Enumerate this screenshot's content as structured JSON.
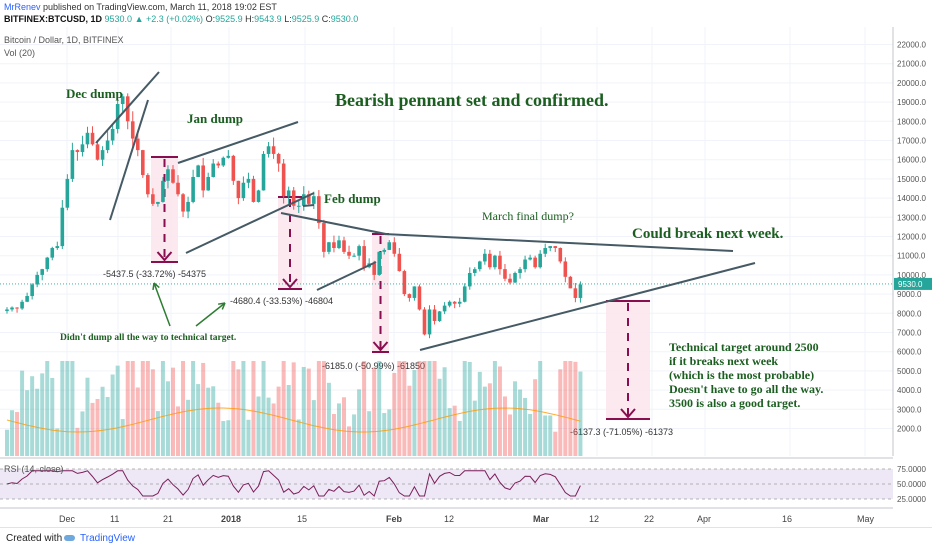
{
  "header": {
    "author": "MrRenev",
    "published": "published on TradingView.com, March 11, 2018 19:02 EST",
    "symbol": "BITFINEX:BTCUSD, 1D",
    "last": "9530.0",
    "change": "+2.3 (+0.02%)",
    "open_label": "O:",
    "open": "9525.9",
    "high_label": "H:",
    "high": "9543.9",
    "low_label": "L:",
    "low": "9525.9",
    "close_label": "C:",
    "close": "9530.0",
    "title": "Bitcoin / Dollar, 1D, BITFINEX",
    "vol_label": "Vol (20)",
    "rsi_label": "RSI (14, close)"
  },
  "colors": {
    "up": "#26a69a",
    "down": "#ef5350",
    "trend": "#455a64",
    "annotation": "#1b5e20",
    "measure": "#880e4f",
    "measure_fill": "#fce4ec",
    "rsi_line": "#7b1f5a",
    "rsi_band": "#ede7f6"
  },
  "footer": {
    "created": "Created with",
    "brand": "TradingView"
  },
  "chart_data": {
    "type": "candlestick",
    "title": "Bitcoin / Dollar, 1D, BITFINEX",
    "y_axis": {
      "min": 2000,
      "max": 22000,
      "ticks": [
        2000,
        3000,
        4000,
        5000,
        6000,
        7000,
        8000,
        9000,
        10000,
        11000,
        12000,
        13000,
        14000,
        15000,
        16000,
        17000,
        18000,
        19000,
        20000,
        21000,
        22000
      ],
      "labels": [
        "2000.0",
        "3000.0",
        "4000.0",
        "5000.0",
        "6000.0",
        "7000.0",
        "8000.0",
        "9000.0",
        "10000.0",
        "11000.0",
        "12000.0",
        "13000.0",
        "14000.0",
        "15000.0",
        "16000.0",
        "17000.0",
        "18000.0",
        "19000.0",
        "20000.0",
        "21000.0",
        "22000.0"
      ]
    },
    "last_price": 9530.0,
    "x_labels": [
      "Dec",
      "11",
      "21",
      "2018",
      "15",
      "Feb",
      "12",
      "Mar",
      "12",
      "22",
      "Apr",
      "16",
      "May"
    ],
    "closes": [
      8200,
      8300,
      8250,
      8600,
      8900,
      9500,
      10000,
      10300,
      10900,
      11400,
      11500,
      13500,
      15000,
      16500,
      16400,
      16800,
      17400,
      16800,
      16000,
      16500,
      17000,
      17600,
      18900,
      19300,
      18000,
      17100,
      16500,
      15200,
      14200,
      13700,
      13800,
      14900,
      15500,
      14800,
      14200,
      13300,
      13800,
      15100,
      15700,
      14400,
      15100,
      15800,
      15700,
      16100,
      16200,
      14900,
      14000,
      14800,
      15000,
      13800,
      14400,
      16300,
      16700,
      16300,
      15800,
      14100,
      14400,
      13600,
      13600,
      14200,
      13700,
      14100,
      12700,
      11200,
      11700,
      11400,
      11800,
      11200,
      11000,
      11000,
      11500,
      10400,
      10600,
      10000,
      11200,
      11300,
      11700,
      11100,
      10200,
      9000,
      8800,
      9400,
      8200,
      6900,
      8200,
      7600,
      8100,
      8400,
      8600,
      8500,
      8600,
      9400,
      10100,
      10300,
      10700,
      11100,
      10400,
      11000,
      10300,
      9800,
      9600,
      10100,
      10300,
      10800,
      10900,
      10400,
      11100,
      11400,
      11500,
      11400,
      10700,
      9900,
      9300,
      8800,
      9500
    ]
  },
  "volume": {
    "label": "Vol (20)"
  },
  "rsi": {
    "label": "RSI (14, close)",
    "levels": [
      25,
      50,
      75
    ],
    "labels": [
      "25.0000",
      "50.0000",
      "75.0000"
    ]
  },
  "annotations": {
    "title": "Bearish pennant set and confirmed.",
    "dec_dump": "Dec dump",
    "jan_dump": "Jan dump",
    "feb_dump": "Feb dump",
    "march": "March final dump?",
    "could_break": "Could break next week.",
    "didnt_dump": "Didn't dump all the way to technical target.",
    "target_lines": [
      "Technical target around 2500",
      "if it breaks next week",
      "(which is the most probable)",
      "Doesn't have to go all the way.",
      "3500 is also a good target."
    ],
    "m1": "-5437.5 (-33.72%) -54375",
    "m2": "-4680.4 (-33.53%) -46804",
    "m3": "-6185.0 (-50.99%) -61850",
    "m4": "-6137.3 (-71.05%) -61373"
  }
}
